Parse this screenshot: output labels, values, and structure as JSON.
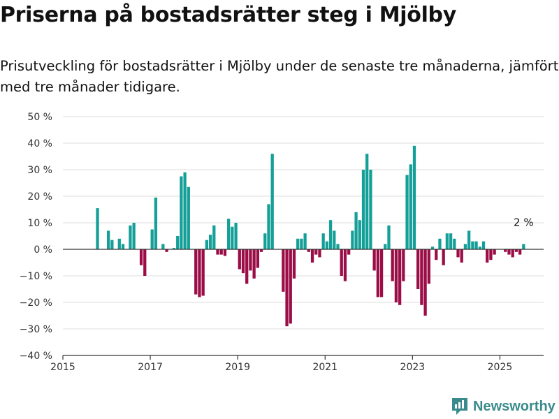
{
  "header": {
    "title": "Priserna på bostadsrätter steg i Mjölby",
    "subtitle": "Prisutveckling för bostadsrätter i Mjölby under de senaste tre månaderna, jämfört med tre månader tidigare."
  },
  "brand": {
    "name": "Newsworthy",
    "icon": "newsworthy-logo-icon"
  },
  "colors": {
    "positive": "#14a098",
    "negative": "#9b0d47",
    "grid": "#dddddd",
    "axis": "#333333"
  },
  "chart_data": {
    "type": "bar",
    "x_start": "2015-01",
    "x_range": [
      2015,
      2026
    ],
    "x_ticks": [
      "2015",
      "2017",
      "2019",
      "2021",
      "2023",
      "2025"
    ],
    "ylim": [
      -40,
      50
    ],
    "y_ticks": [
      "50 %",
      "40 %",
      "30 %",
      "20 %",
      "10 %",
      "0 %",
      "−10 %",
      "−20 %",
      "−30 %",
      "−40 %"
    ],
    "grid": true,
    "annotations": [
      {
        "label": "2 %",
        "x": "2025-07",
        "y": 2
      }
    ],
    "series": [
      {
        "x": [
          "2015-10",
          "2016-01",
          "2016-02",
          "2016-04",
          "2016-05",
          "2016-07",
          "2016-08",
          "2016-10",
          "2016-11",
          "2017-01",
          "2017-02",
          "2017-04",
          "2017-05",
          "2017-07",
          "2017-08",
          "2017-09",
          "2017-10",
          "2017-11",
          "2018-01",
          "2018-02",
          "2018-03",
          "2018-04",
          "2018-05",
          "2018-06",
          "2018-07",
          "2018-08",
          "2018-09",
          "2018-10",
          "2018-11",
          "2018-12",
          "2019-01",
          "2019-02",
          "2019-03",
          "2019-04",
          "2019-05",
          "2019-06",
          "2019-07",
          "2019-08",
          "2019-09",
          "2019-10",
          "2020-01",
          "2020-02",
          "2020-03",
          "2020-04",
          "2020-05",
          "2020-06",
          "2020-07",
          "2020-08",
          "2020-09",
          "2020-10",
          "2020-11",
          "2020-12",
          "2021-01",
          "2021-02",
          "2021-03",
          "2021-04",
          "2021-05",
          "2021-06",
          "2021-07",
          "2021-08",
          "2021-09",
          "2021-10",
          "2021-11",
          "2021-12",
          "2022-01",
          "2022-02",
          "2022-03",
          "2022-04",
          "2022-05",
          "2022-06",
          "2022-07",
          "2022-08",
          "2022-09",
          "2022-10",
          "2022-11",
          "2022-12",
          "2023-01",
          "2023-02",
          "2023-03",
          "2023-04",
          "2023-05",
          "2023-06",
          "2023-07",
          "2023-08",
          "2023-09",
          "2023-10",
          "2023-11",
          "2023-12",
          "2024-01",
          "2024-02",
          "2024-03",
          "2024-04",
          "2024-05",
          "2024-06",
          "2024-07",
          "2024-08",
          "2024-09",
          "2024-10",
          "2024-11",
          "2024-12",
          "2025-02",
          "2025-03",
          "2025-04",
          "2025-05",
          "2025-06",
          "2025-07"
        ],
        "values": [
          15.5,
          7,
          3.5,
          4,
          2,
          9,
          10,
          -6,
          -10,
          7.5,
          19.5,
          2,
          -1,
          0.5,
          5,
          27.5,
          29,
          23.5,
          -17,
          -18,
          -17.5,
          3.5,
          5.5,
          9,
          -2,
          -2,
          -2.5,
          11.5,
          8.5,
          10,
          -7.5,
          -9,
          -13,
          -8,
          -11,
          -7,
          -1,
          6,
          17,
          36,
          -16,
          -29,
          -28,
          -11,
          4,
          4,
          6,
          -1,
          -5,
          -2,
          -3,
          6,
          3,
          11,
          7,
          2,
          -10,
          -12,
          -2,
          7,
          14,
          11,
          30,
          36,
          30,
          -8,
          -18,
          -18,
          2,
          9,
          -12,
          -20,
          -21,
          -12,
          28,
          32,
          39,
          -15,
          -21,
          -25,
          -13,
          1,
          -4,
          4,
          -6,
          6,
          6,
          4,
          -3,
          -5,
          2,
          7,
          3,
          3,
          1,
          3,
          -5,
          -4,
          -2,
          0,
          -1,
          -2,
          -3,
          -1,
          -2,
          2
        ]
      }
    ]
  }
}
